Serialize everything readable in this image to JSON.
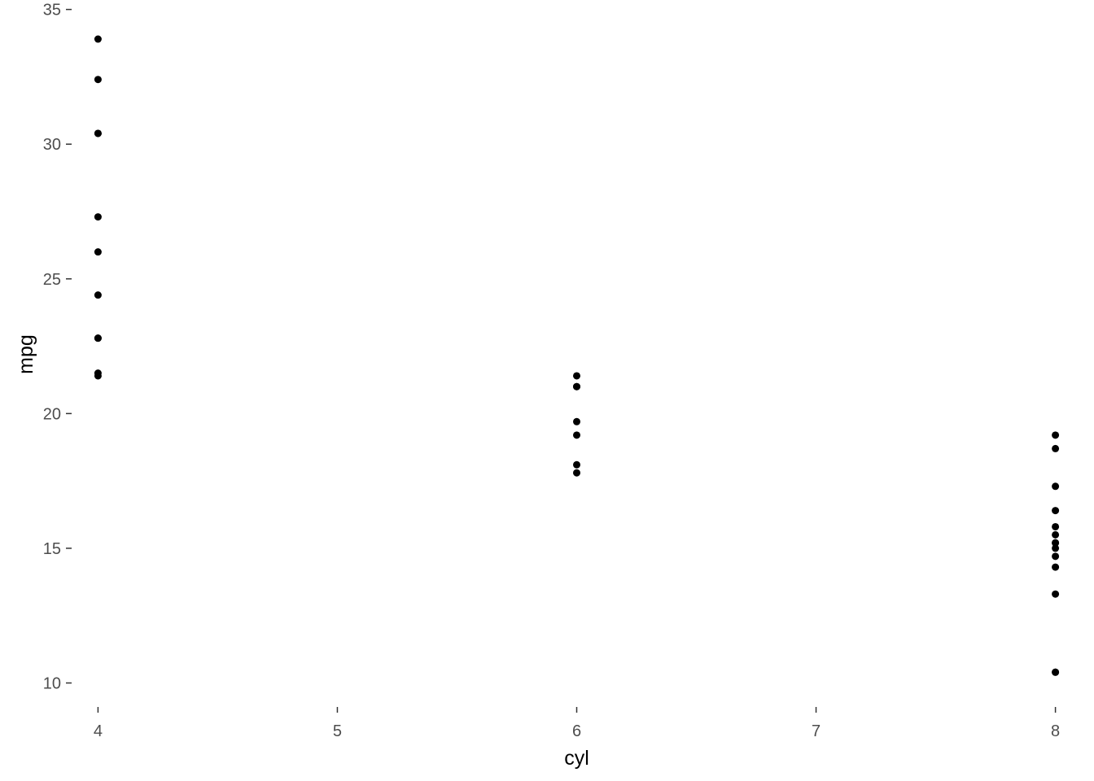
{
  "chart_data": {
    "type": "scatter",
    "title": "",
    "xlabel": "cyl",
    "ylabel": "mpg",
    "xlim": [
      3.9,
      8.1
    ],
    "ylim": [
      9.2,
      35.2
    ],
    "x_ticks": [
      4,
      5,
      6,
      7,
      8
    ],
    "y_ticks": [
      10,
      15,
      20,
      25,
      30,
      35
    ],
    "grid": false,
    "legend": "none",
    "point_color": "#000000",
    "series": [
      {
        "x": [
          6,
          6,
          4,
          6,
          8,
          6,
          8,
          4,
          4,
          6,
          6,
          8,
          8,
          8,
          8,
          8,
          8,
          4,
          4,
          4,
          4,
          8,
          8,
          8,
          8,
          4,
          4,
          4,
          8,
          6,
          8,
          4
        ],
        "y": [
          21.0,
          21.0,
          22.8,
          21.4,
          18.7,
          18.1,
          14.3,
          24.4,
          22.8,
          19.2,
          17.8,
          16.4,
          17.3,
          15.2,
          10.4,
          10.4,
          14.7,
          32.4,
          30.4,
          33.9,
          21.5,
          15.5,
          15.2,
          13.3,
          19.2,
          27.3,
          26.0,
          30.4,
          15.8,
          19.7,
          15.0,
          21.4
        ]
      }
    ]
  }
}
